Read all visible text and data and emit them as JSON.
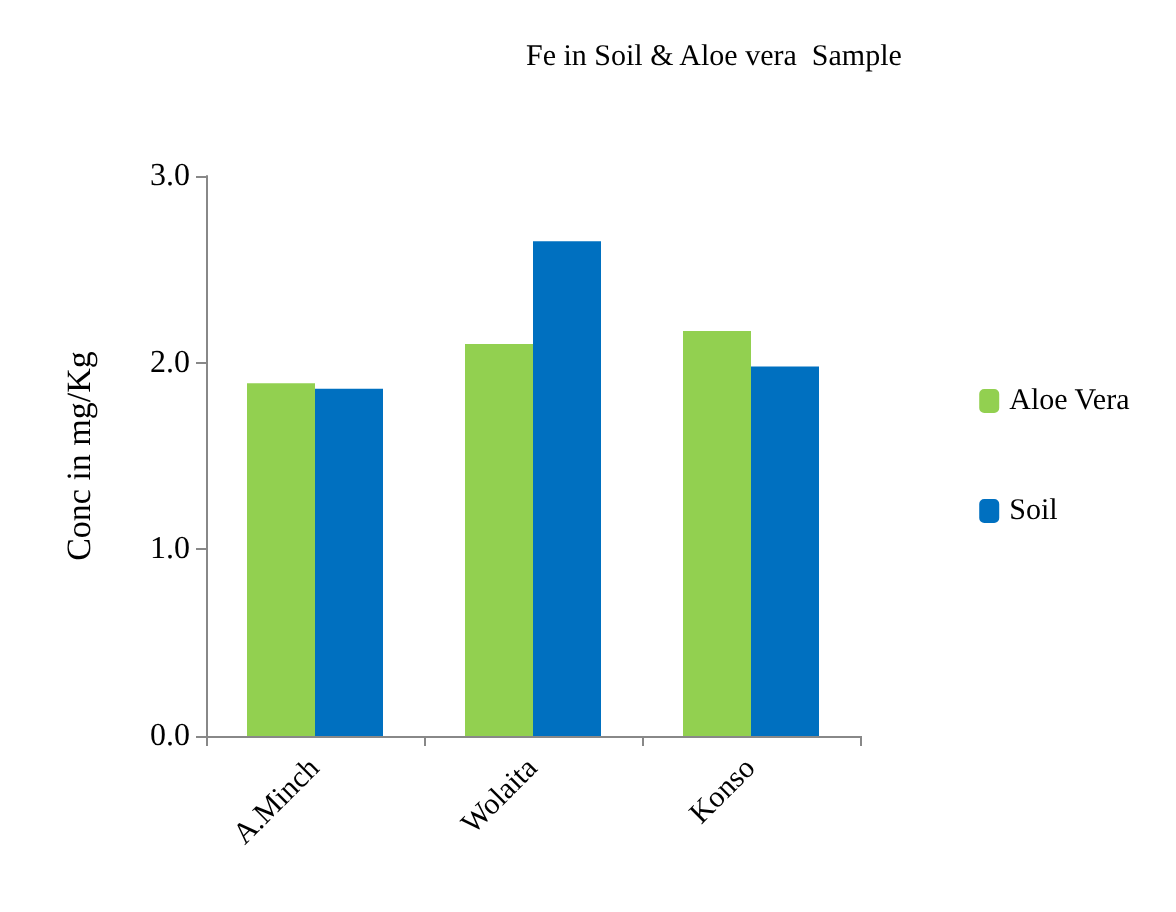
{
  "chart_data": {
    "type": "bar",
    "title": "Fe in Soil & Aloe vera  Sample",
    "ylabel": "Conc in mg/Kg",
    "categories": [
      "A.Minch",
      "Wolaita",
      "Konso"
    ],
    "series": [
      {
        "name": "Aloe Vera",
        "color": "#92d050",
        "values": [
          1.89,
          2.1,
          2.17
        ]
      },
      {
        "name": "Soil",
        "color": "#0070c0",
        "values": [
          1.86,
          2.65,
          1.98
        ]
      }
    ],
    "ylim": [
      0,
      3
    ],
    "yticks": [
      {
        "value": 0,
        "label": "0.0"
      },
      {
        "value": 1,
        "label": "1.0"
      },
      {
        "value": 2,
        "label": "2.0"
      },
      {
        "value": 3,
        "label": "3.0"
      }
    ],
    "grid": false,
    "legend": "right"
  }
}
